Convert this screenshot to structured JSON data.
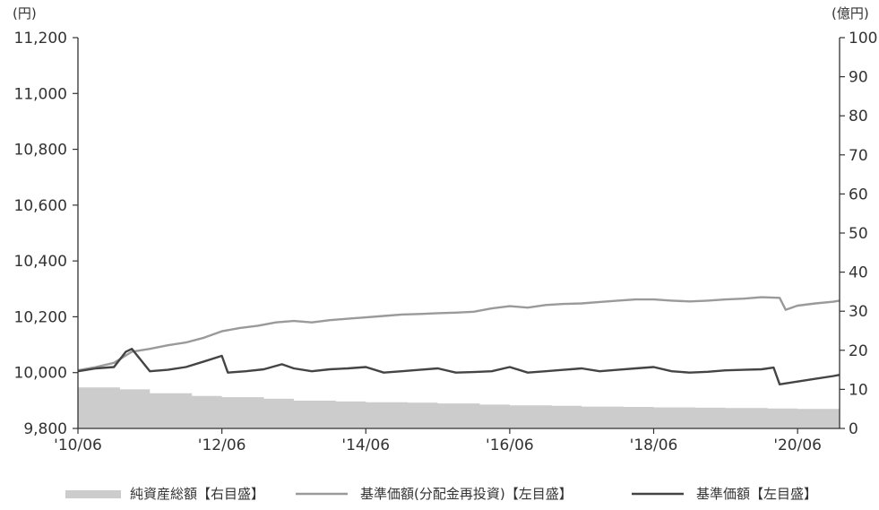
{
  "chart_data": {
    "type": "line",
    "left_unit": "(円)",
    "right_unit": "(億円)",
    "x_ticks": [
      "'10/06",
      "'12/06",
      "'14/06",
      "'16/06",
      "'18/06",
      "'20/06"
    ],
    "x_range": [
      "2010-06",
      "2021-01"
    ],
    "left_axis": {
      "range": [
        9800,
        11200
      ],
      "ticks": [
        9800,
        10000,
        10200,
        10400,
        10600,
        10800,
        11000,
        11200
      ],
      "tick_labels": [
        "9,800",
        "10,000",
        "10,200",
        "10,400",
        "10,600",
        "10,800",
        "11,000",
        "11,200"
      ]
    },
    "right_axis": {
      "range": [
        0,
        100
      ],
      "ticks": [
        0,
        10,
        20,
        30,
        40,
        50,
        60,
        70,
        80,
        90,
        100
      ],
      "tick_labels": [
        "0",
        "10",
        "20",
        "30",
        "40",
        "50",
        "60",
        "70",
        "80",
        "90",
        "100"
      ]
    },
    "colors": {
      "net_assets": "#cccccc",
      "nav_reinvested": "#9a9a9a",
      "nav": "#444444",
      "axis": "#333333"
    },
    "series": [
      {
        "name": "純資産総額【右目盛】",
        "type": "area",
        "axis": "right",
        "x": [
          "2010-06",
          "2011-01",
          "2011-06",
          "2012-01",
          "2012-06",
          "2013-01",
          "2013-06",
          "2014-01",
          "2014-06",
          "2015-01",
          "2015-06",
          "2016-01",
          "2016-06",
          "2017-01",
          "2017-06",
          "2018-01",
          "2018-06",
          "2019-01",
          "2019-06",
          "2020-01",
          "2020-06",
          "2021-01"
        ],
        "values": [
          10.5,
          10.0,
          9.0,
          8.3,
          8.0,
          7.6,
          7.1,
          6.9,
          6.7,
          6.6,
          6.4,
          6.1,
          5.9,
          5.8,
          5.6,
          5.5,
          5.4,
          5.3,
          5.2,
          5.1,
          5.0,
          5.0
        ]
      },
      {
        "name": "基準価額(分配金再投資)【左目盛】",
        "type": "line",
        "axis": "left",
        "x": [
          "2010-06",
          "2010-09",
          "2010-12",
          "2011-03",
          "2011-06",
          "2011-09",
          "2011-12",
          "2012-03",
          "2012-06",
          "2012-09",
          "2012-12",
          "2013-03",
          "2013-06",
          "2013-09",
          "2013-12",
          "2014-03",
          "2014-06",
          "2014-09",
          "2014-12",
          "2015-03",
          "2015-06",
          "2015-09",
          "2015-12",
          "2016-03",
          "2016-06",
          "2016-09",
          "2016-12",
          "2017-03",
          "2017-06",
          "2017-09",
          "2017-12",
          "2018-03",
          "2018-06",
          "2018-09",
          "2018-12",
          "2019-03",
          "2019-06",
          "2019-09",
          "2019-12",
          "2020-03",
          "2020-04",
          "2020-06",
          "2020-09",
          "2020-12",
          "2021-01"
        ],
        "values": [
          10008,
          10020,
          10035,
          10075,
          10085,
          10098,
          10108,
          10125,
          10148,
          10160,
          10168,
          10180,
          10185,
          10180,
          10188,
          10193,
          10198,
          10203,
          10208,
          10210,
          10213,
          10215,
          10218,
          10230,
          10238,
          10233,
          10242,
          10246,
          10248,
          10253,
          10258,
          10262,
          10262,
          10258,
          10255,
          10258,
          10262,
          10265,
          10270,
          10268,
          10225,
          10240,
          10248,
          10254,
          10258
        ]
      },
      {
        "name": "基準価額【左目盛】",
        "type": "line",
        "axis": "left",
        "x": [
          "2010-06",
          "2010-09",
          "2010-12",
          "2011-02",
          "2011-03",
          "2011-06",
          "2011-09",
          "2011-12",
          "2012-03",
          "2012-06",
          "2012-07",
          "2012-10",
          "2013-01",
          "2013-04",
          "2013-06",
          "2013-09",
          "2013-12",
          "2014-03",
          "2014-06",
          "2014-09",
          "2014-12",
          "2015-03",
          "2015-06",
          "2015-09",
          "2015-12",
          "2016-03",
          "2016-06",
          "2016-09",
          "2016-12",
          "2017-03",
          "2017-06",
          "2017-09",
          "2017-12",
          "2018-03",
          "2018-06",
          "2018-09",
          "2018-12",
          "2019-03",
          "2019-06",
          "2019-09",
          "2019-12",
          "2020-02",
          "2020-03",
          "2020-06",
          "2020-09",
          "2020-12",
          "2021-01"
        ],
        "values": [
          10005,
          10015,
          10020,
          10075,
          10085,
          10005,
          10010,
          10020,
          10040,
          10060,
          10000,
          10005,
          10012,
          10030,
          10015,
          10005,
          10012,
          10015,
          10020,
          10000,
          10005,
          10010,
          10015,
          10000,
          10002,
          10005,
          10020,
          10000,
          10005,
          10010,
          10015,
          10005,
          10010,
          10015,
          10020,
          10005,
          10000,
          10003,
          10008,
          10010,
          10012,
          10018,
          9958,
          9968,
          9978,
          9988,
          9992
        ]
      }
    ],
    "legend": {
      "placement": "bottom",
      "items": [
        "純資産総額【右目盛】",
        "基準価額(分配金再投資)【左目盛】",
        "基準価額【左目盛】"
      ]
    }
  }
}
